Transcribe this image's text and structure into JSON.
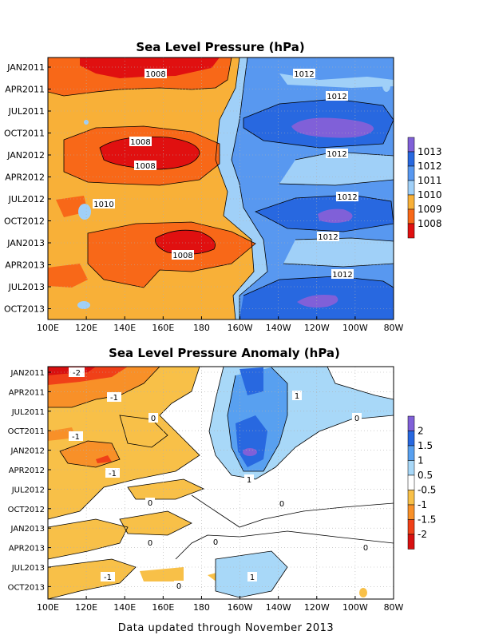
{
  "footer": "Data updated through November 2013",
  "chart_data": [
    {
      "type": "heatmap",
      "title": "Sea Level Pressure (hPa)",
      "xlabel": "",
      "ylabel": "",
      "x_ticks": [
        "100E",
        "120E",
        "140E",
        "160E",
        "180",
        "160W",
        "140W",
        "120W",
        "100W",
        "80W"
      ],
      "y_ticks": [
        "JAN2011",
        "APR2011",
        "JUL2011",
        "OCT2011",
        "JAN2012",
        "APR2012",
        "JUL2012",
        "OCT2012",
        "JAN2013",
        "APR2013",
        "JUL2013",
        "OCT2013"
      ],
      "colorbar": [
        {
          "label": "1008",
          "color": "#e01010"
        },
        {
          "label": "1009",
          "color": "#f86818"
        },
        {
          "label": "1010",
          "color": "#f8b038"
        },
        {
          "label": "1011",
          "color": "#a0d0f8"
        },
        {
          "label": "1012",
          "color": "#5898f0"
        },
        {
          "label": "1013",
          "color": "#2868e0"
        },
        {
          "label": "",
          "color": "#8060d8"
        }
      ],
      "colorbar_levels": [
        "1008",
        "1009",
        "1010",
        "1011",
        "1012",
        "1013"
      ],
      "contour_labels": [
        {
          "text": "1008",
          "lon": "150E",
          "time": "JAN2011"
        },
        {
          "text": "1012",
          "lon": "135W",
          "time": "JAN2011"
        },
        {
          "text": "1012",
          "lon": "120W",
          "time": "APR2011"
        },
        {
          "text": "1008",
          "lon": "140E",
          "time": "DEC2011"
        },
        {
          "text": "1008",
          "lon": "145E",
          "time": "FEB2012"
        },
        {
          "text": "1012",
          "lon": "120W",
          "time": "JAN2012"
        },
        {
          "text": "1010",
          "lon": "118E",
          "time": "AUG2012"
        },
        {
          "text": "1012",
          "lon": "110W",
          "time": "JUL2012"
        },
        {
          "text": "1012",
          "lon": "125W",
          "time": "DEC2012"
        },
        {
          "text": "1008",
          "lon": "165E",
          "time": "MAR2013"
        },
        {
          "text": "1012",
          "lon": "110W",
          "time": "JUN2013"
        }
      ],
      "regions": [
        {
          "level": "1010",
          "desc": "Western Pacific 100E-175E (base)"
        },
        {
          "level": "1009",
          "desc": "West Pacific low bands"
        },
        {
          "level": "1008",
          "desc": "Jan 2011, Jan 2012, Feb 2013 cores"
        },
        {
          "level": "1011",
          "desc": "Transition near dateline / 160W"
        },
        {
          "level": "1012",
          "desc": "Eastern Pacific 160W-80W"
        },
        {
          "level": "1013",
          "desc": "Oct 2011, Oct 2012, Oct 2013 cores near 120W-105W"
        }
      ]
    },
    {
      "type": "heatmap",
      "title": "Sea Level Pressure Anomaly (hPa)",
      "xlabel": "",
      "ylabel": "",
      "x_ticks": [
        "100E",
        "120E",
        "140E",
        "160E",
        "180",
        "160W",
        "140W",
        "120W",
        "100W",
        "80W"
      ],
      "y_ticks": [
        "JAN2011",
        "APR2011",
        "JUL2011",
        "OCT2011",
        "JAN2012",
        "APR2012",
        "JUL2012",
        "OCT2012",
        "JAN2013",
        "APR2013",
        "JUL2013",
        "OCT2013"
      ],
      "colorbar": [
        {
          "label": "",
          "color": "#d81010"
        },
        {
          "label": "-2",
          "color": "#f04018"
        },
        {
          "label": "-1.5",
          "color": "#f89028"
        },
        {
          "label": "-1",
          "color": "#f8c048"
        },
        {
          "label": "-0.5",
          "color": "#ffffff"
        },
        {
          "label": "0.5",
          "color": "#a8d8f8"
        },
        {
          "label": "1",
          "color": "#58a0f0"
        },
        {
          "label": "1.5",
          "color": "#2868e0"
        },
        {
          "label": "2",
          "color": "#8060d8"
        }
      ],
      "colorbar_levels": [
        "-2",
        "-1.5",
        "-1",
        "-0.5",
        "0.5",
        "1",
        "1.5",
        "2"
      ],
      "contour_labels": [
        {
          "text": "-2",
          "lon": "108E",
          "time": "JAN2011"
        },
        {
          "text": "-1",
          "lon": "130E",
          "time": "APR2011"
        },
        {
          "text": "1",
          "lon": "135W",
          "time": "APR2011"
        },
        {
          "text": "0",
          "lon": "160E",
          "time": "JUL2011"
        },
        {
          "text": "0",
          "lon": "115W",
          "time": "JUL2011"
        },
        {
          "text": "-1",
          "lon": "105E",
          "time": "OCT2011"
        },
        {
          "text": "-1",
          "lon": "130E",
          "time": "APR2012"
        },
        {
          "text": "1",
          "lon": "160W",
          "time": "APR2012"
        },
        {
          "text": "0",
          "lon": "160E",
          "time": "SEP2012"
        },
        {
          "text": "0",
          "lon": "145W",
          "time": "SEP2012"
        },
        {
          "text": "0",
          "lon": "165E",
          "time": "FEB2013"
        },
        {
          "text": "0",
          "lon": "120W",
          "time": "MAR2013"
        },
        {
          "text": "0",
          "lon": "100W",
          "time": "MAR2013"
        },
        {
          "text": "-1",
          "lon": "125E",
          "time": "JUL2013"
        },
        {
          "text": "1",
          "lon": "160W",
          "time": "JUL2013"
        },
        {
          "text": "0",
          "lon": "150E",
          "time": "AUG2013"
        }
      ],
      "regions": [
        {
          "level": "-0.5",
          "desc": "Negative anomalies west of 175E"
        },
        {
          "level": "-1",
          "desc": "Larger negative anomalies near 105E-135E"
        },
        {
          "level": "-2",
          "desc": "Jan 2011 strongest negative near 100E-140E"
        },
        {
          "level": "0.5",
          "desc": "Positive anomalies 175W-120W"
        },
        {
          "level": "1",
          "desc": "Positive core late 2011 - early 2012 near 165W-150W"
        },
        {
          "level": "2",
          "desc": "Peak near 160W JAN2012"
        }
      ]
    }
  ]
}
